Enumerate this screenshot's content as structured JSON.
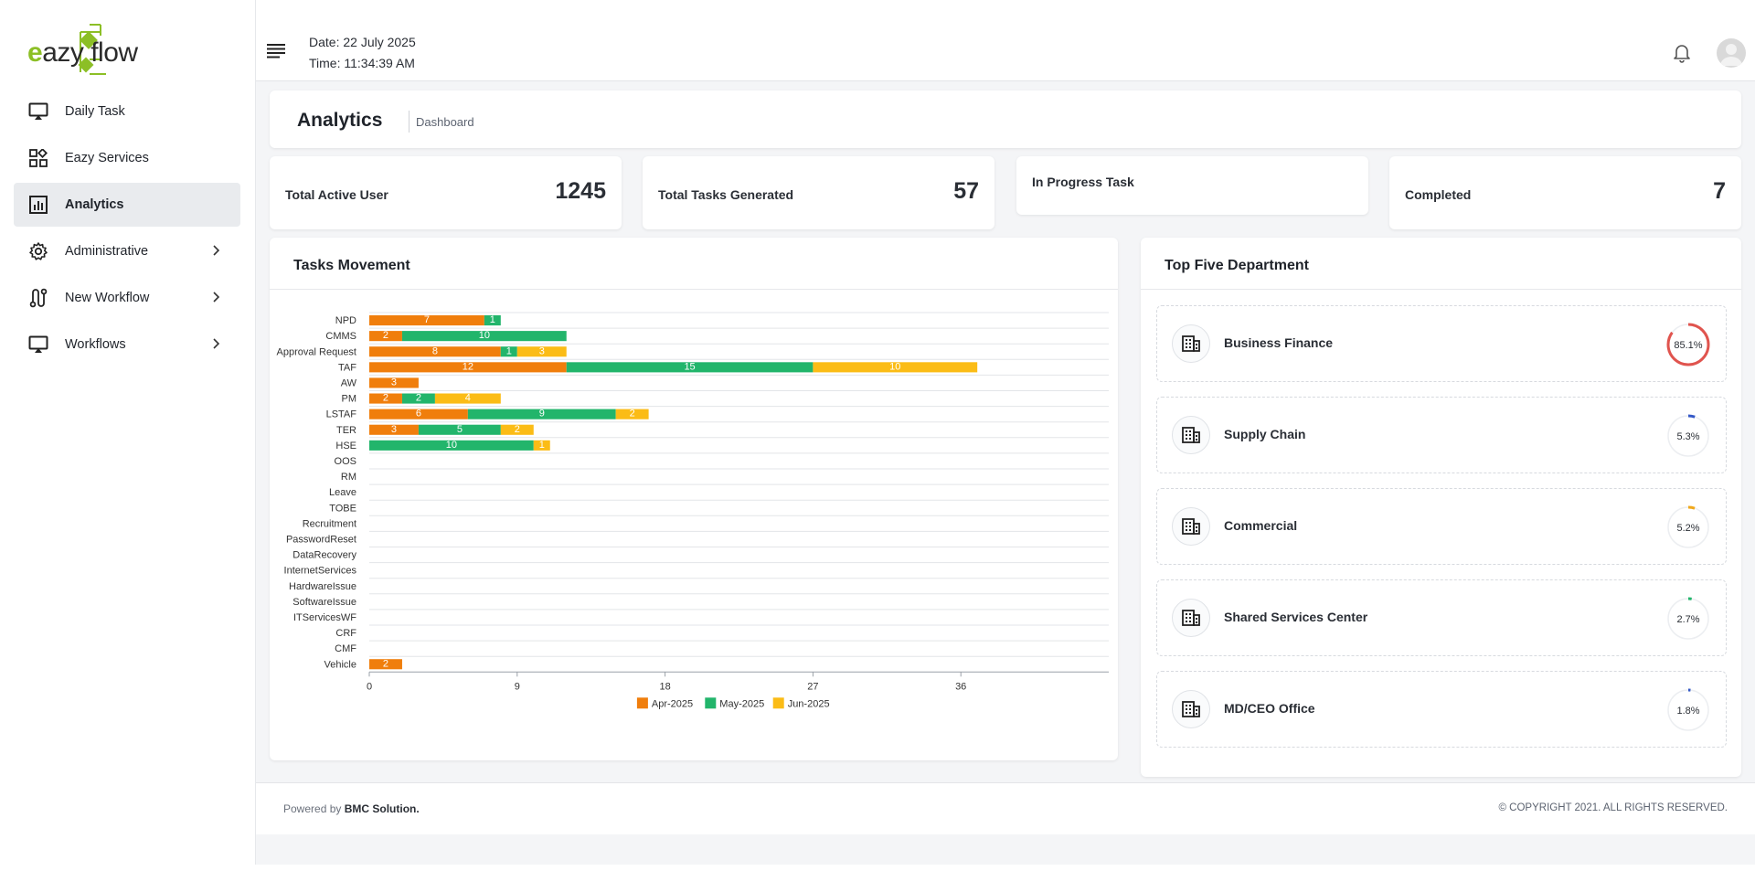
{
  "brand": {
    "logo_text_e": "e",
    "logo_text_rest": "azy flow",
    "accent": "#8cbf26"
  },
  "sidebar": {
    "items": [
      {
        "label": "Daily Task",
        "icon": "monitor-icon"
      },
      {
        "label": "Eazy Services",
        "icon": "grid-icon"
      },
      {
        "label": "Analytics",
        "icon": "bar-chart-icon",
        "active": true
      },
      {
        "label": "Administrative",
        "icon": "gear-icon",
        "has_children": true
      },
      {
        "label": "New Workflow",
        "icon": "workflow-icon",
        "has_children": true
      },
      {
        "label": "Workflows",
        "icon": "monitor-icon",
        "has_children": true
      }
    ]
  },
  "header": {
    "date": "Date: 22 July 2025",
    "time": "Time:  11:34:39 AM"
  },
  "page": {
    "title": "Analytics",
    "breadcrumb": "Dashboard"
  },
  "stats": [
    {
      "label": "Total Active User",
      "value": "1245"
    },
    {
      "label": "Total Tasks Generated",
      "value": "57"
    },
    {
      "label": "In Progress Task",
      "value": ""
    },
    {
      "label": "Completed",
      "value": "7"
    }
  ],
  "tasks_card": {
    "title": "Tasks Movement"
  },
  "chart_data": {
    "type": "bar",
    "orientation": "horizontal",
    "stacked": true,
    "categories": [
      "NPD",
      "CMMS",
      "Approval Request",
      "TAF",
      "AW",
      "PM",
      "LSTAF",
      "TER",
      "HSE",
      "OOS",
      "RM",
      "Leave",
      "TOBE",
      "Recruitment",
      "PasswordReset",
      "DataRecovery",
      "InternetServices",
      "HardwareIssue",
      "SoftwareIssue",
      "ITServicesWF",
      "CRF",
      "CMF",
      "Vehicle"
    ],
    "series": [
      {
        "name": "Apr-2025",
        "color": "#f07e0c",
        "values": [
          7,
          2,
          8,
          12,
          3,
          2,
          6,
          3,
          0,
          0,
          0,
          0,
          0,
          0,
          0,
          0,
          0,
          0,
          0,
          0,
          0,
          0,
          2
        ]
      },
      {
        "name": "May-2025",
        "color": "#22b56b",
        "values": [
          1,
          10,
          1,
          15,
          0,
          2,
          9,
          5,
          10,
          0,
          0,
          0,
          0,
          0,
          0,
          0,
          0,
          0,
          0,
          0,
          0,
          0,
          0
        ]
      },
      {
        "name": "Jun-2025",
        "color": "#fbbc16",
        "values": [
          0,
          0,
          3,
          10,
          0,
          4,
          2,
          2,
          1,
          0,
          0,
          0,
          0,
          0,
          0,
          0,
          0,
          0,
          0,
          0,
          0,
          0,
          0
        ]
      }
    ],
    "x_ticks": [
      0,
      9,
      18,
      27,
      36
    ],
    "xlim": [
      0,
      45
    ],
    "legend": "bottom",
    "grid": true
  },
  "dept_card": {
    "title": "Top Five Department",
    "items": [
      {
        "name": "Business Finance",
        "percent_label": "85.1%",
        "percent": 85.1,
        "color": "#e0544e"
      },
      {
        "name": "Supply Chain",
        "percent_label": "5.3%",
        "percent": 5.3,
        "color": "#3458c7"
      },
      {
        "name": "Commercial",
        "percent_label": "5.2%",
        "percent": 5.2,
        "color": "#f0a81c"
      },
      {
        "name": "Shared Services Center",
        "percent_label": "2.7%",
        "percent": 2.7,
        "color": "#22b56b"
      },
      {
        "name": "MD/CEO Office",
        "percent_label": "1.8%",
        "percent": 1.8,
        "color": "#3458c7"
      }
    ]
  },
  "footer": {
    "powered_prefix": "Powered by ",
    "powered_brand": "BMC Solution.",
    "copyright": "© COPYRIGHT 2021. ALL RIGHTS RESERVED."
  }
}
